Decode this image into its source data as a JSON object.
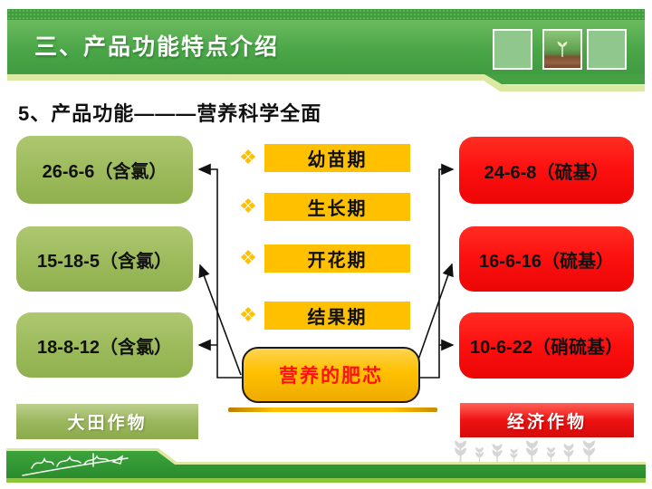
{
  "header": {
    "title": "三、产品功能特点介绍"
  },
  "subtitle": {
    "text": "5、产品功能———营养科学全面"
  },
  "left_column": {
    "items": [
      "26-6-6（含氯）",
      "15-18-5（含氯）",
      "18-8-12（含氯）"
    ],
    "footer_label": "大田作物"
  },
  "middle_column": {
    "phases": [
      "幼苗期",
      "生长期",
      "开花期",
      "结果期"
    ]
  },
  "right_column": {
    "items": [
      "24-6-8（硫基）",
      "16-6-16（硫基）",
      "10-6-22（硝硫基）"
    ],
    "footer_label": "经济作物"
  },
  "center_box": {
    "label": "营养的肥芯"
  },
  "icons": {
    "phase_bullet_glyph": "❖",
    "phase_bullet": "diamond-cluster-icon",
    "header_photo": "seedling-photo",
    "watermark": "sprout-pattern",
    "footer_logo": "brand-signature"
  },
  "colors": {
    "header_green": "#4ba648",
    "pale_trim": "#dce9a2",
    "olive_green": "#9cba5b",
    "gold": "#ffc000",
    "red": "#fc0f0f",
    "footer_green": "#2f9733",
    "center_text_red": "#ff1111"
  },
  "decor": {
    "sprout_count": 8
  }
}
